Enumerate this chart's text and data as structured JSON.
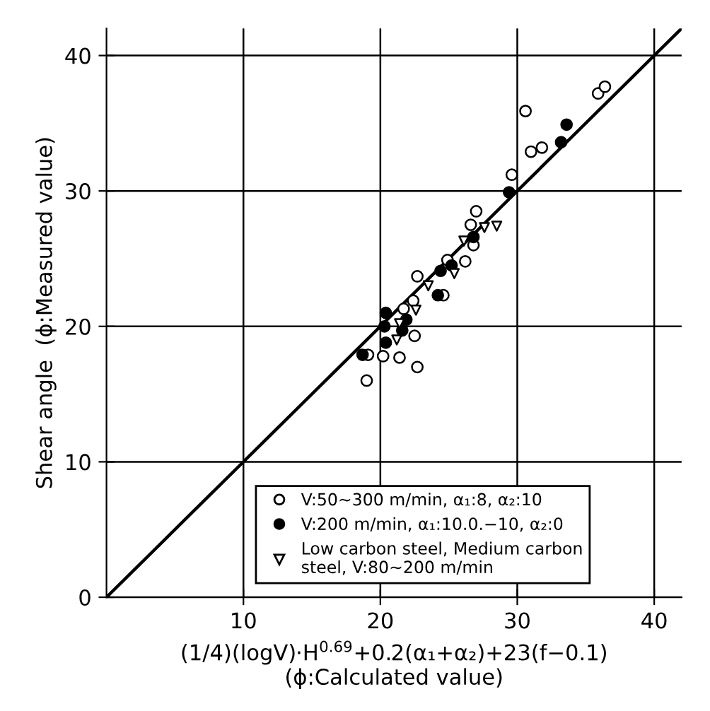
{
  "chart_data": {
    "type": "scatter",
    "xlabel": "(1/4)(logV)·H$^{0.69}$+0.2(α₁+α₂)+23(f−0.1)\n(ϕ:Calculated value)",
    "ylabel": "Shear angle  (ϕ:Measured value)",
    "xlim": [
      0,
      42
    ],
    "ylim": [
      0,
      42
    ],
    "xticks": [
      10,
      20,
      30,
      40
    ],
    "yticks": [
      0,
      10,
      20,
      30,
      40
    ],
    "grid": true,
    "legend": "bottom",
    "series": [
      {
        "name": "V:50~300 m/min, α₁:8, α₂:10",
        "color": "#ffffff",
        "marker": "circle",
        "x": [
          35.9,
          36.4,
          30.6,
          31.0,
          31.8,
          29.6,
          27.0,
          26.6,
          26.8,
          24.9,
          26.2,
          22.7,
          24.6,
          22.4,
          21.7,
          22.5,
          19.1,
          20.2,
          21.4,
          22.7,
          19.0
        ],
        "values": [
          37.2,
          37.7,
          35.9,
          32.9,
          33.2,
          31.2,
          28.5,
          27.5,
          26.0,
          24.9,
          24.8,
          23.7,
          22.3,
          21.9,
          21.3,
          19.3,
          17.9,
          17.8,
          17.7,
          17.0,
          16.0
        ]
      },
      {
        "name": "V:200 m/min, α₁:10.0.−10, α₂:0",
        "color": "#000000",
        "marker": "circle",
        "x": [
          33.6,
          33.2,
          29.4,
          26.8,
          24.4,
          25.2,
          24.2,
          20.4,
          20.3,
          21.9,
          21.6,
          20.4,
          18.7
        ],
        "values": [
          34.9,
          33.6,
          29.9,
          26.6,
          24.1,
          24.5,
          22.3,
          21.0,
          20.0,
          20.5,
          19.7,
          18.8,
          17.9
        ]
      },
      {
        "name": "Low carbon steel, Medium carbon\nsteel, V:80~200 m/min",
        "color": "#ffffff",
        "marker": "triangle",
        "x": [
          28.5,
          27.6,
          26.1,
          23.5,
          22.6,
          21.4,
          21.2,
          25.4
        ],
        "values": [
          27.4,
          27.3,
          26.3,
          23.0,
          21.2,
          20.2,
          19.0,
          23.9
        ]
      },
      {
        "type": "line",
        "color": "#000000",
        "marker": "none",
        "x": [
          0,
          42
        ],
        "values": [
          0,
          42
        ]
      }
    ]
  }
}
